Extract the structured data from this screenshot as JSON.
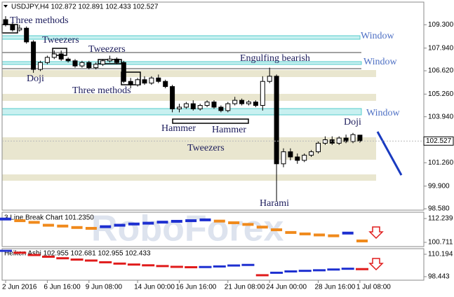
{
  "chart_data": [
    {
      "type": "candlestick",
      "title": "USDJPY,H4  102.872 102.891 102.433 102.527",
      "open": [
        109.6,
        109.3,
        109.0,
        109.1,
        108.3,
        106.7,
        107.1,
        107.4,
        107.6,
        107.3,
        107.2,
        106.9,
        107.1,
        106.8,
        107.0,
        107.2,
        107.3,
        107.1,
        106.0,
        105.8,
        106.1,
        105.9,
        106.2,
        106.0,
        105.7,
        104.4,
        104.5,
        104.7,
        104.4,
        104.6,
        104.8,
        104.5,
        104.3,
        104.7,
        104.9,
        104.7,
        104.8,
        104.6,
        106.0,
        106.3,
        101.2,
        101.9,
        101.6,
        101.4,
        101.7,
        101.9,
        102.4,
        102.6,
        102.4,
        102.7,
        102.5,
        102.872
      ],
      "high": [
        109.8,
        109.4,
        109.3,
        109.2,
        108.4,
        107.2,
        107.5,
        107.8,
        107.8,
        107.4,
        107.3,
        107.2,
        107.2,
        107.1,
        107.3,
        107.5,
        107.4,
        107.2,
        106.2,
        106.2,
        106.3,
        106.3,
        106.4,
        106.1,
        105.8,
        104.7,
        104.8,
        104.9,
        104.7,
        104.9,
        104.9,
        104.6,
        104.8,
        105.1,
        105.0,
        104.9,
        104.9,
        106.3,
        106.8,
        106.4,
        102.1,
        102.1,
        101.8,
        101.8,
        102.0,
        102.5,
        102.8,
        102.8,
        102.8,
        102.9,
        103.0,
        102.891
      ],
      "low": [
        109.2,
        108.9,
        108.9,
        108.2,
        106.5,
        106.6,
        107.0,
        107.3,
        107.2,
        107.1,
        106.8,
        106.8,
        106.7,
        106.7,
        106.9,
        107.1,
        107.0,
        105.9,
        105.6,
        105.7,
        105.8,
        105.8,
        105.9,
        105.6,
        104.2,
        104.2,
        104.4,
        104.3,
        104.3,
        104.5,
        104.4,
        104.2,
        104.2,
        104.6,
        104.6,
        104.6,
        104.5,
        104.3,
        105.9,
        99.0,
        101.0,
        101.4,
        101.2,
        101.3,
        101.6,
        101.8,
        102.3,
        102.3,
        102.3,
        102.4,
        102.4,
        102.433
      ],
      "close": [
        109.3,
        109.0,
        109.1,
        108.3,
        106.7,
        107.1,
        107.4,
        107.6,
        107.3,
        107.2,
        106.9,
        107.1,
        106.8,
        107.0,
        107.2,
        107.3,
        107.1,
        106.0,
        105.8,
        106.1,
        105.9,
        106.2,
        106.0,
        105.7,
        104.4,
        104.5,
        104.7,
        104.4,
        104.6,
        104.8,
        104.5,
        104.3,
        104.7,
        104.9,
        104.7,
        104.8,
        104.6,
        106.0,
        106.3,
        101.2,
        101.9,
        101.6,
        101.4,
        101.7,
        101.9,
        102.4,
        102.6,
        102.4,
        102.7,
        102.5,
        102.9,
        102.527
      ],
      "current_price": 102.527,
      "ylim": [
        98.5,
        110.62
      ],
      "yticks": [
        {
          "value": 109.3,
          "label": "109.300"
        },
        {
          "value": 107.94,
          "label": "107.940"
        },
        {
          "value": 106.62,
          "label": "106.620"
        },
        {
          "value": 105.26,
          "label": "105.260"
        },
        {
          "value": 103.94,
          "label": "103.940"
        },
        {
          "value": 101.26,
          "label": "101.260"
        },
        {
          "value": 99.9,
          "label": "99.900"
        },
        {
          "value": 98.58,
          "label": "98.580"
        }
      ],
      "xticks": [
        {
          "value": 0,
          "label": "2 Jun 2016"
        },
        {
          "value": 6,
          "label": "6 Jun 16:00"
        },
        {
          "value": 12,
          "label": "9 Jun 08:00"
        },
        {
          "value": 19,
          "label": "14 Jun 00:00"
        },
        {
          "value": 25,
          "label": "16 Jun 16:00"
        },
        {
          "value": 32,
          "label": "21 Jun 08:00"
        },
        {
          "value": 38,
          "label": "24 Jun 00:00"
        },
        {
          "value": 45,
          "label": "28 Jun 16:00"
        },
        {
          "value": 51,
          "label": "1 Jul 08:00"
        }
      ],
      "annotations": [
        "Three methods",
        "Tweezers",
        "Tweezers",
        "Doji",
        "Three methods",
        "Engulfing bearish",
        "Hammer",
        "Hammer",
        "Tweezers",
        "Harami",
        "Doji",
        "Window",
        "Window",
        "Window"
      ],
      "watermark": "RoboForex"
    },
    {
      "type": "line-break",
      "title": "3 Line Break Chart 101.2350",
      "values": [
        112.0,
        111.2,
        110.4,
        109.0,
        108.6,
        107.9,
        107.5,
        108.3,
        109.0,
        109.6,
        110.0,
        110.5,
        110.9,
        111.2,
        111.6,
        111.0,
        110.2,
        109.4,
        108.1,
        106.8,
        105.5,
        104.8,
        104.3,
        103.9,
        105.2,
        101.4
      ],
      "up_color": "#1d2fd0",
      "down_color": "#f08a1c",
      "ylim": [
        98.68,
        115.29
      ],
      "yticks": [
        {
          "value": 112.239,
          "label": "112.239"
        },
        {
          "value": 100.711,
          "label": "100.711"
        }
      ]
    },
    {
      "type": "heiken-ashi",
      "title": "Heiken Ashi 102.955 102.681 102.955 102.433",
      "values": [
        112.0,
        111.0,
        109.8,
        108.9,
        108.1,
        107.4,
        106.9,
        106.0,
        105.3,
        104.8,
        104.4,
        104.0,
        103.6,
        103.4,
        103.5,
        103.8,
        104.3,
        104.6,
        99.2,
        100.5,
        101.2,
        101.5,
        101.8,
        102.2,
        102.6,
        102.4
      ],
      "up_color": "#1d2fd0",
      "down_color": "#e01b1b",
      "ylim": [
        96.6,
        113.13
      ],
      "yticks": [
        {
          "value": 110.194,
          "label": "110.194"
        },
        {
          "value": 98.443,
          "label": "98.443"
        }
      ]
    }
  ]
}
